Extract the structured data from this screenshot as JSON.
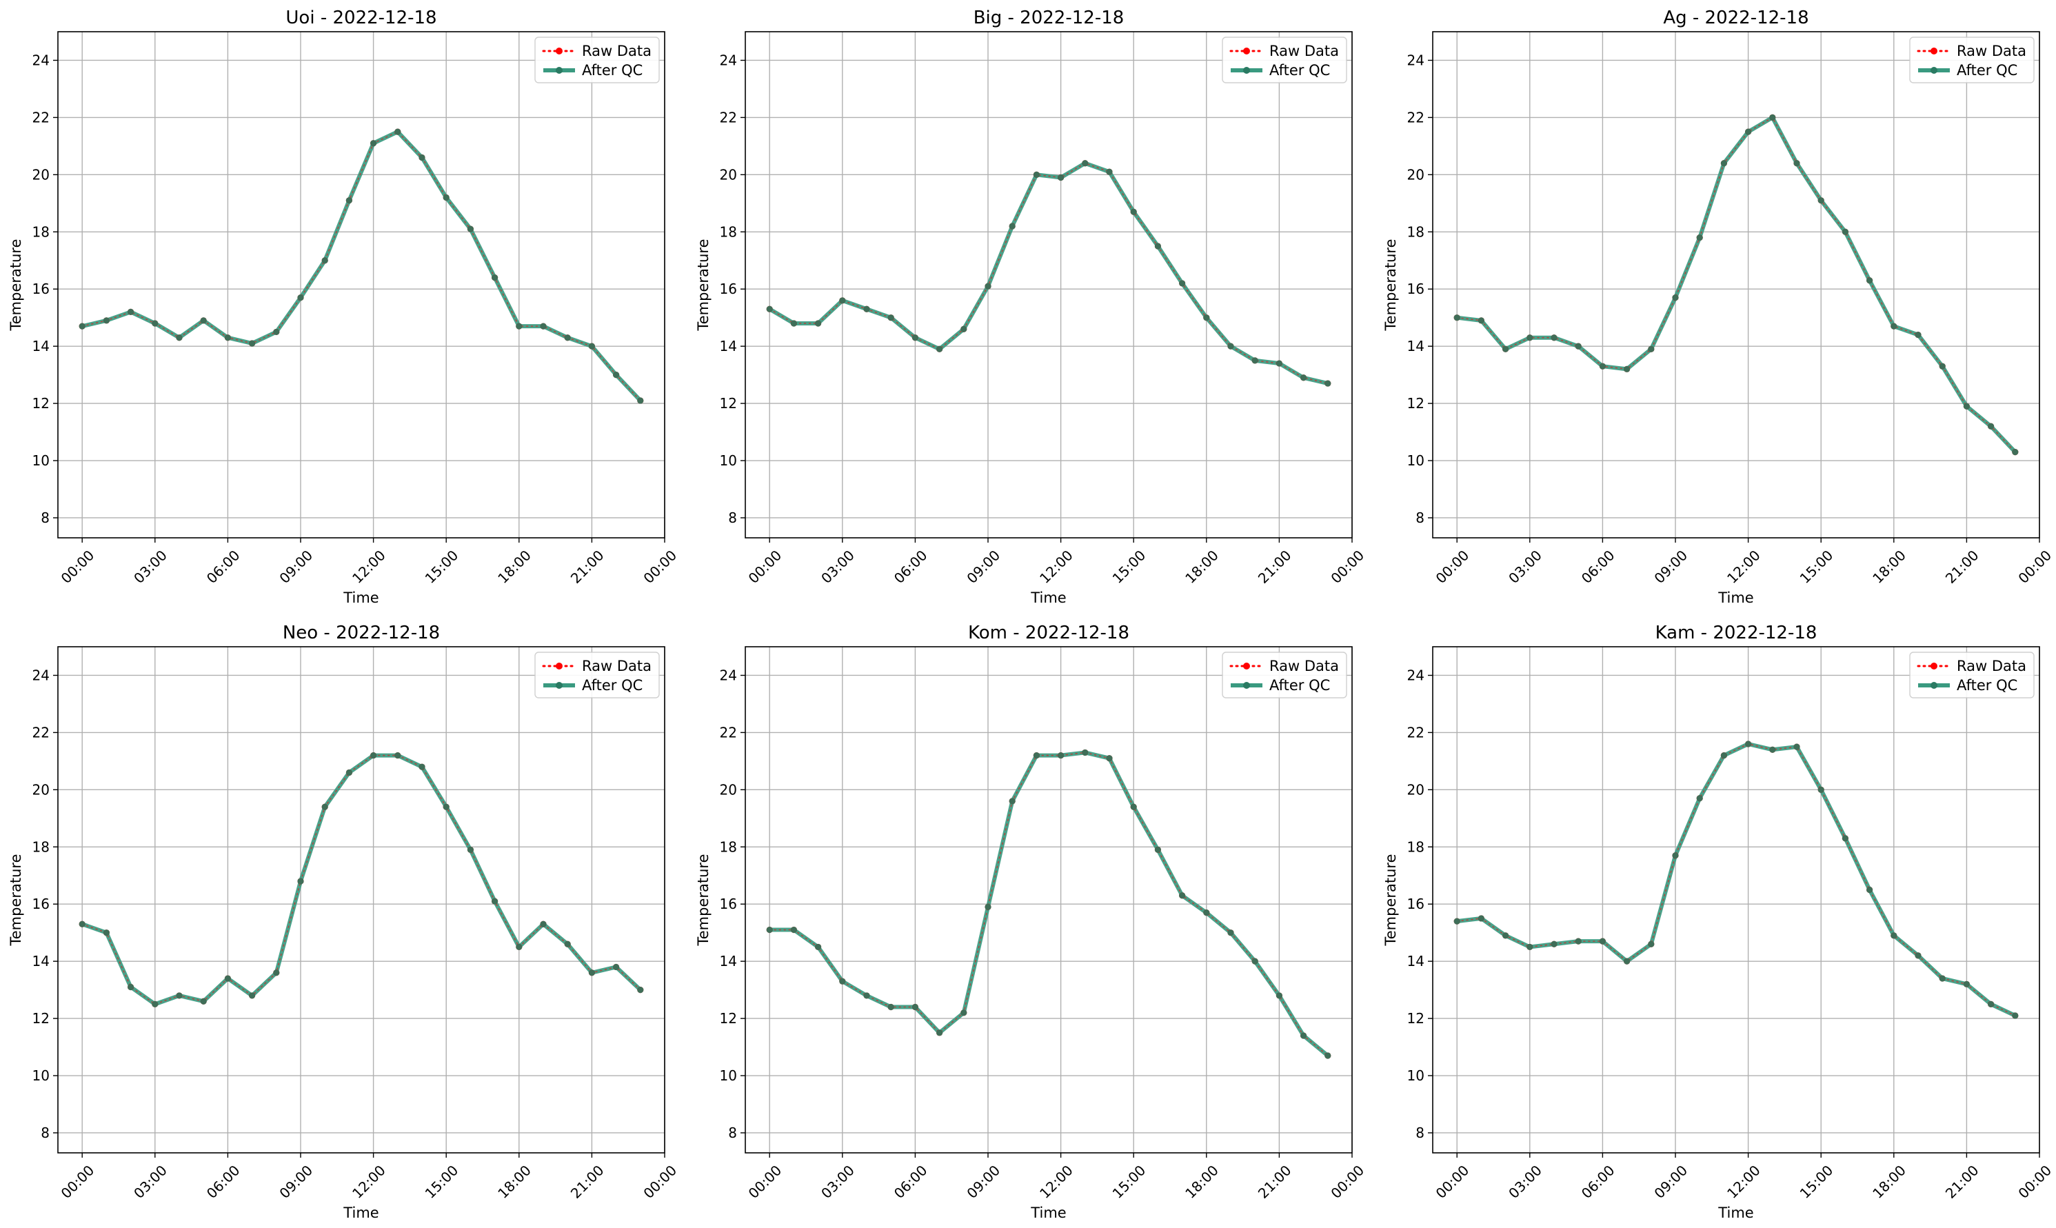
{
  "legend": {
    "raw_label": "Raw Data",
    "qc_label": "After QC",
    "raw_color": "#ff0000",
    "qc_color": "#3a9a80"
  },
  "colors": {
    "raw": "#ff0000",
    "qc_line": "#3a9a80",
    "qc_marker": "#2a7a62",
    "grid": "#b0b0b0"
  },
  "chart_data": [
    {
      "type": "line",
      "title": "Uoi - 2022-12-18",
      "xlabel": "Time",
      "ylabel": "Temperature",
      "xlim": [
        -1.0,
        24.0
      ],
      "ylim": [
        7.3,
        25.0
      ],
      "yticks": [
        8,
        10,
        12,
        14,
        16,
        18,
        20,
        22,
        24
      ],
      "xticks": [
        "00:00",
        "03:00",
        "06:00",
        "09:00",
        "12:00",
        "15:00",
        "18:00",
        "21:00",
        "00:00"
      ],
      "xtick_hours": [
        0,
        3,
        6,
        9,
        12,
        15,
        18,
        21,
        24
      ],
      "grid": true,
      "legend_position": "top-right",
      "x_hours": [
        0,
        1,
        2,
        3,
        4,
        5,
        6,
        7,
        8,
        9,
        10,
        11,
        12,
        13,
        14,
        15,
        16,
        17,
        18,
        19,
        20,
        21,
        22,
        23
      ],
      "series": [
        {
          "name": "Raw Data",
          "values": [
            14.7,
            14.9,
            15.2,
            14.8,
            14.3,
            14.9,
            14.3,
            14.1,
            14.5,
            15.7,
            17.0,
            19.1,
            21.1,
            21.5,
            20.6,
            19.2,
            18.1,
            16.4,
            14.7,
            14.7,
            14.3,
            14.0,
            13.0,
            12.1
          ]
        },
        {
          "name": "After QC",
          "values": [
            14.7,
            14.9,
            15.2,
            14.8,
            14.3,
            14.9,
            14.3,
            14.1,
            14.5,
            15.7,
            17.0,
            19.1,
            21.1,
            21.5,
            20.6,
            19.2,
            18.1,
            16.4,
            14.7,
            14.7,
            14.3,
            14.0,
            13.0,
            12.1
          ]
        }
      ]
    },
    {
      "type": "line",
      "title": "Big - 2022-12-18",
      "xlabel": "Time",
      "ylabel": "Temperature",
      "xlim": [
        -1.0,
        24.0
      ],
      "ylim": [
        7.3,
        25.0
      ],
      "yticks": [
        8,
        10,
        12,
        14,
        16,
        18,
        20,
        22,
        24
      ],
      "xticks": [
        "00:00",
        "03:00",
        "06:00",
        "09:00",
        "12:00",
        "15:00",
        "18:00",
        "21:00",
        "00:00"
      ],
      "xtick_hours": [
        0,
        3,
        6,
        9,
        12,
        15,
        18,
        21,
        24
      ],
      "grid": true,
      "legend_position": "top-right",
      "x_hours": [
        0,
        1,
        2,
        3,
        4,
        5,
        6,
        7,
        8,
        9,
        10,
        11,
        12,
        13,
        14,
        15,
        16,
        17,
        18,
        19,
        20,
        21,
        22,
        23
      ],
      "series": [
        {
          "name": "Raw Data",
          "values": [
            15.3,
            14.8,
            14.8,
            15.6,
            15.3,
            15.0,
            14.3,
            13.9,
            14.6,
            16.1,
            18.2,
            20.0,
            19.9,
            20.4,
            20.1,
            18.7,
            17.5,
            16.2,
            15.0,
            14.0,
            13.5,
            13.4,
            12.9,
            12.7
          ]
        },
        {
          "name": "After QC",
          "values": [
            15.3,
            14.8,
            14.8,
            15.6,
            15.3,
            15.0,
            14.3,
            13.9,
            14.6,
            16.1,
            18.2,
            20.0,
            19.9,
            20.4,
            20.1,
            18.7,
            17.5,
            16.2,
            15.0,
            14.0,
            13.5,
            13.4,
            12.9,
            12.7
          ]
        }
      ]
    },
    {
      "type": "line",
      "title": "Ag - 2022-12-18",
      "xlabel": "Time",
      "ylabel": "Temperature",
      "xlim": [
        -1.0,
        24.0
      ],
      "ylim": [
        7.3,
        25.0
      ],
      "yticks": [
        8,
        10,
        12,
        14,
        16,
        18,
        20,
        22,
        24
      ],
      "xticks": [
        "00:00",
        "03:00",
        "06:00",
        "09:00",
        "12:00",
        "15:00",
        "18:00",
        "21:00",
        "00:00"
      ],
      "xtick_hours": [
        0,
        3,
        6,
        9,
        12,
        15,
        18,
        21,
        24
      ],
      "grid": true,
      "legend_position": "top-right",
      "x_hours": [
        0,
        1,
        2,
        3,
        4,
        5,
        6,
        7,
        8,
        9,
        10,
        11,
        12,
        13,
        14,
        15,
        16,
        17,
        18,
        19,
        20,
        21,
        22,
        23
      ],
      "series": [
        {
          "name": "Raw Data",
          "values": [
            15.0,
            14.9,
            13.9,
            14.3,
            14.3,
            14.0,
            13.3,
            13.2,
            13.9,
            15.7,
            17.8,
            20.4,
            21.5,
            22.0,
            20.4,
            19.1,
            18.0,
            16.3,
            14.7,
            14.4,
            13.3,
            11.9,
            11.2,
            10.3
          ]
        },
        {
          "name": "After QC",
          "values": [
            15.0,
            14.9,
            13.9,
            14.3,
            14.3,
            14.0,
            13.3,
            13.2,
            13.9,
            15.7,
            17.8,
            20.4,
            21.5,
            22.0,
            20.4,
            19.1,
            18.0,
            16.3,
            14.7,
            14.4,
            13.3,
            11.9,
            11.2,
            10.3
          ]
        }
      ]
    },
    {
      "type": "line",
      "title": "Neo - 2022-12-18",
      "xlabel": "Time",
      "ylabel": "Temperature",
      "xlim": [
        -1.0,
        24.0
      ],
      "ylim": [
        7.3,
        25.0
      ],
      "yticks": [
        8,
        10,
        12,
        14,
        16,
        18,
        20,
        22,
        24
      ],
      "xticks": [
        "00:00",
        "03:00",
        "06:00",
        "09:00",
        "12:00",
        "15:00",
        "18:00",
        "21:00",
        "00:00"
      ],
      "xtick_hours": [
        0,
        3,
        6,
        9,
        12,
        15,
        18,
        21,
        24
      ],
      "grid": true,
      "legend_position": "top-right",
      "x_hours": [
        0,
        1,
        2,
        3,
        4,
        5,
        6,
        7,
        8,
        9,
        10,
        11,
        12,
        13,
        14,
        15,
        16,
        17,
        18,
        19,
        20,
        21,
        22,
        23
      ],
      "series": [
        {
          "name": "Raw Data",
          "values": [
            15.3,
            15.0,
            13.1,
            12.5,
            12.8,
            12.6,
            13.4,
            12.8,
            13.6,
            16.8,
            19.4,
            20.6,
            21.2,
            21.2,
            20.8,
            19.4,
            17.9,
            16.1,
            14.5,
            15.3,
            14.6,
            13.6,
            13.8,
            13.0
          ]
        },
        {
          "name": "After QC",
          "values": [
            15.3,
            15.0,
            13.1,
            12.5,
            12.8,
            12.6,
            13.4,
            12.8,
            13.6,
            16.8,
            19.4,
            20.6,
            21.2,
            21.2,
            20.8,
            19.4,
            17.9,
            16.1,
            14.5,
            15.3,
            14.6,
            13.6,
            13.8,
            13.0
          ]
        }
      ]
    },
    {
      "type": "line",
      "title": "Kom - 2022-12-18",
      "xlabel": "Time",
      "ylabel": "Temperature",
      "xlim": [
        -1.0,
        24.0
      ],
      "ylim": [
        7.3,
        25.0
      ],
      "yticks": [
        8,
        10,
        12,
        14,
        16,
        18,
        20,
        22,
        24
      ],
      "xticks": [
        "00:00",
        "03:00",
        "06:00",
        "09:00",
        "12:00",
        "15:00",
        "18:00",
        "21:00",
        "00:00"
      ],
      "xtick_hours": [
        0,
        3,
        6,
        9,
        12,
        15,
        18,
        21,
        24
      ],
      "grid": true,
      "legend_position": "top-right",
      "x_hours": [
        0,
        1,
        2,
        3,
        4,
        5,
        6,
        7,
        8,
        9,
        10,
        11,
        12,
        13,
        14,
        15,
        16,
        17,
        18,
        19,
        20,
        21,
        22,
        23
      ],
      "series": [
        {
          "name": "Raw Data",
          "values": [
            15.1,
            15.1,
            14.5,
            13.3,
            12.8,
            12.4,
            12.4,
            11.5,
            12.2,
            15.9,
            19.6,
            21.2,
            21.2,
            21.3,
            21.1,
            19.4,
            17.9,
            16.3,
            15.7,
            15.0,
            14.0,
            12.8,
            11.4,
            10.7
          ]
        },
        {
          "name": "After QC",
          "values": [
            15.1,
            15.1,
            14.5,
            13.3,
            12.8,
            12.4,
            12.4,
            11.5,
            12.2,
            15.9,
            19.6,
            21.2,
            21.2,
            21.3,
            21.1,
            19.4,
            17.9,
            16.3,
            15.7,
            15.0,
            14.0,
            12.8,
            11.4,
            10.7
          ]
        }
      ]
    },
    {
      "type": "line",
      "title": "Kam - 2022-12-18",
      "xlabel": "Time",
      "ylabel": "Temperature",
      "xlim": [
        -1.0,
        24.0
      ],
      "ylim": [
        7.3,
        25.0
      ],
      "yticks": [
        8,
        10,
        12,
        14,
        16,
        18,
        20,
        22,
        24
      ],
      "xticks": [
        "00:00",
        "03:00",
        "06:00",
        "09:00",
        "12:00",
        "15:00",
        "18:00",
        "21:00",
        "00:00"
      ],
      "xtick_hours": [
        0,
        3,
        6,
        9,
        12,
        15,
        18,
        21,
        24
      ],
      "grid": true,
      "legend_position": "top-right",
      "x_hours": [
        0,
        1,
        2,
        3,
        4,
        5,
        6,
        7,
        8,
        9,
        10,
        11,
        12,
        13,
        14,
        15,
        16,
        17,
        18,
        19,
        20,
        21,
        22,
        23
      ],
      "series": [
        {
          "name": "Raw Data",
          "values": [
            15.4,
            15.5,
            14.9,
            14.5,
            14.6,
            14.7,
            14.7,
            14.0,
            14.6,
            17.7,
            19.7,
            21.2,
            21.6,
            21.4,
            21.5,
            20.0,
            18.3,
            16.5,
            14.9,
            14.2,
            13.4,
            13.2,
            12.5,
            12.1
          ]
        },
        {
          "name": "After QC",
          "values": [
            15.4,
            15.5,
            14.9,
            14.5,
            14.6,
            14.7,
            14.7,
            14.0,
            14.6,
            17.7,
            19.7,
            21.2,
            21.6,
            21.4,
            21.5,
            20.0,
            18.3,
            16.5,
            14.9,
            14.2,
            13.4,
            13.2,
            12.5,
            12.1
          ]
        }
      ]
    }
  ]
}
